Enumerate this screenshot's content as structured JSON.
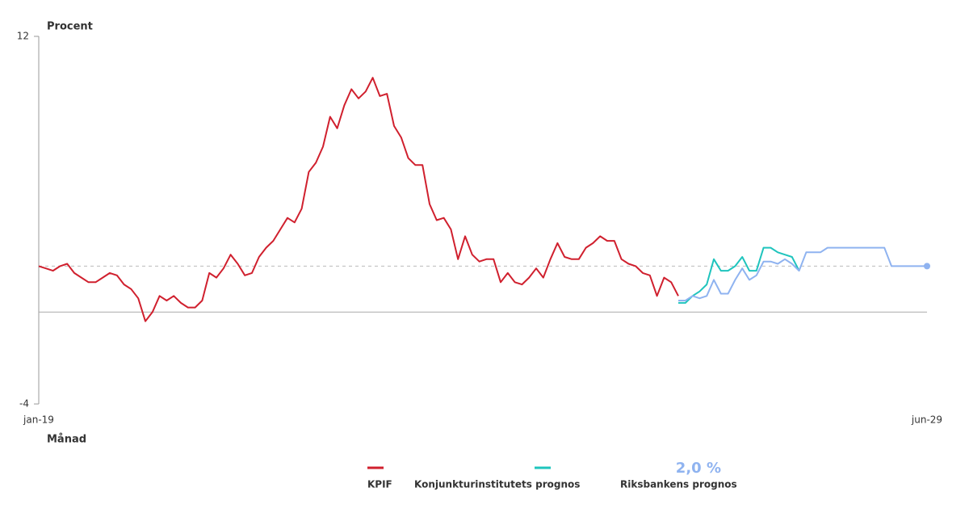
{
  "chart_data": {
    "type": "line",
    "y_label": "Procent",
    "x_label": "Månad",
    "categories": [
      "jan-19",
      null,
      null,
      null,
      null,
      null,
      null,
      null,
      null,
      null,
      null,
      null,
      null,
      null,
      null,
      null,
      null,
      null,
      null,
      null,
      null,
      null,
      null,
      null,
      null,
      null,
      null,
      null,
      null,
      null,
      null,
      null,
      null,
      null,
      null,
      null,
      null,
      null,
      null,
      null,
      null,
      null,
      null,
      null,
      null,
      null,
      null,
      null,
      null,
      null,
      null,
      null,
      null,
      null,
      null,
      null,
      null,
      null,
      null,
      null,
      null,
      null,
      null,
      null,
      null,
      null,
      null,
      null,
      null,
      null,
      null,
      null,
      null,
      null,
      null,
      null,
      null,
      null,
      null,
      null,
      null,
      null,
      null,
      null,
      null,
      null,
      null,
      null,
      null,
      null,
      null,
      null,
      null,
      null,
      null,
      null,
      null,
      null,
      null,
      null,
      null,
      null,
      null,
      null,
      null,
      null,
      null,
      null,
      null,
      null,
      null,
      null,
      null,
      null,
      null,
      null,
      null,
      null,
      null,
      null,
      null,
      null,
      null,
      null,
      null,
      "jun-29"
    ],
    "ylim": [
      -4,
      12
    ],
    "yticks": [
      -4,
      12
    ],
    "hline": 2,
    "series": [
      {
        "name": "KPIF",
        "color": "#d0202e",
        "values": [
          2.0,
          1.9,
          1.8,
          2.0,
          2.1,
          1.7,
          1.5,
          1.3,
          1.3,
          1.5,
          1.7,
          1.6,
          1.2,
          1.0,
          0.6,
          -0.4,
          0.0,
          0.7,
          0.5,
          0.7,
          0.4,
          0.2,
          0.2,
          0.5,
          1.7,
          1.5,
          1.9,
          2.5,
          2.1,
          1.6,
          1.7,
          2.4,
          2.8,
          3.1,
          3.6,
          4.1,
          3.9,
          4.5,
          6.1,
          6.5,
          7.2,
          8.5,
          8.0,
          9.0,
          9.7,
          9.3,
          9.6,
          10.2,
          9.4,
          9.5,
          8.1,
          7.6,
          6.7,
          6.4,
          6.4,
          4.7,
          4.0,
          4.1,
          3.6,
          2.3,
          3.3,
          2.5,
          2.2,
          2.3,
          2.3,
          1.3,
          1.7,
          1.3,
          1.2,
          1.5,
          1.9,
          1.5,
          2.3,
          3.0,
          2.4,
          2.3,
          2.3,
          2.8,
          3.0,
          3.3,
          3.1,
          3.1,
          2.3,
          2.1,
          2.0,
          1.7,
          1.6,
          0.7,
          1.5,
          1.3,
          0.7,
          null,
          null,
          null,
          null,
          null,
          null,
          null,
          null,
          null,
          null,
          null,
          null,
          null,
          null,
          null,
          null,
          null,
          null,
          null,
          null,
          null,
          null,
          null,
          null,
          null,
          null,
          null,
          null,
          null,
          null,
          null,
          null,
          null,
          null,
          null
        ]
      },
      {
        "name": "Konjunkturinstitutets prognos",
        "color": "#1fc4bd",
        "values": [
          null,
          null,
          null,
          null,
          null,
          null,
          null,
          null,
          null,
          null,
          null,
          null,
          null,
          null,
          null,
          null,
          null,
          null,
          null,
          null,
          null,
          null,
          null,
          null,
          null,
          null,
          null,
          null,
          null,
          null,
          null,
          null,
          null,
          null,
          null,
          null,
          null,
          null,
          null,
          null,
          null,
          null,
          null,
          null,
          null,
          null,
          null,
          null,
          null,
          null,
          null,
          null,
          null,
          null,
          null,
          null,
          null,
          null,
          null,
          null,
          null,
          null,
          null,
          null,
          null,
          null,
          null,
          null,
          null,
          null,
          null,
          null,
          null,
          null,
          null,
          null,
          null,
          null,
          null,
          null,
          null,
          null,
          null,
          null,
          null,
          null,
          null,
          null,
          null,
          null,
          0.4,
          0.4,
          0.7,
          0.9,
          1.2,
          2.3,
          1.8,
          1.8,
          2.0,
          2.4,
          1.8,
          1.8,
          2.8,
          2.8,
          2.6,
          2.5,
          2.4,
          1.8,
          null,
          null,
          null,
          null,
          null,
          null,
          null,
          null,
          null,
          null,
          null,
          null,
          null,
          null,
          null,
          null,
          null,
          null
        ]
      },
      {
        "name": "Riksbankens prognos",
        "color": "#8fb3f0",
        "values": [
          null,
          null,
          null,
          null,
          null,
          null,
          null,
          null,
          null,
          null,
          null,
          null,
          null,
          null,
          null,
          null,
          null,
          null,
          null,
          null,
          null,
          null,
          null,
          null,
          null,
          null,
          null,
          null,
          null,
          null,
          null,
          null,
          null,
          null,
          null,
          null,
          null,
          null,
          null,
          null,
          null,
          null,
          null,
          null,
          null,
          null,
          null,
          null,
          null,
          null,
          null,
          null,
          null,
          null,
          null,
          null,
          null,
          null,
          null,
          null,
          null,
          null,
          null,
          null,
          null,
          null,
          null,
          null,
          null,
          null,
          null,
          null,
          null,
          null,
          null,
          null,
          null,
          null,
          null,
          null,
          null,
          null,
          null,
          null,
          null,
          null,
          null,
          null,
          null,
          null,
          0.5,
          0.5,
          0.7,
          0.6,
          0.7,
          1.4,
          0.8,
          0.8,
          1.4,
          1.9,
          1.4,
          1.6,
          2.2,
          2.2,
          2.1,
          2.3,
          2.1,
          1.8,
          2.6,
          2.6,
          2.6,
          2.8,
          2.8,
          2.8,
          2.8,
          2.8,
          2.8,
          2.8,
          2.8,
          2.8,
          2.0,
          2.0,
          2.0,
          2.0,
          2.0,
          2.0
        ],
        "value_labels": [
          null,
          null,
          null,
          null,
          null,
          null,
          null,
          null,
          null,
          null,
          null,
          null,
          null,
          null,
          null,
          null,
          null,
          null,
          null,
          null,
          null,
          null,
          null,
          null,
          null,
          null,
          null,
          null,
          null,
          null,
          null,
          null,
          null,
          null,
          null,
          null,
          null,
          null,
          null,
          null,
          null,
          null,
          null,
          null,
          null,
          null,
          null,
          null,
          null,
          null,
          null,
          null,
          null,
          null,
          null,
          null,
          null,
          null,
          null,
          null,
          null,
          null,
          null,
          null,
          null,
          null,
          null,
          null,
          null,
          null,
          null,
          null,
          null,
          null,
          null,
          null,
          null,
          null,
          null,
          null,
          null,
          null,
          null,
          null,
          null,
          null,
          null,
          null,
          null,
          null,
          null,
          null,
          null,
          null,
          null,
          null,
          null,
          null,
          null,
          null,
          null,
          null,
          null,
          null,
          null,
          null,
          null,
          null,
          null,
          null,
          null,
          null,
          null,
          null,
          null,
          null,
          null,
          null,
          null,
          null,
          null,
          null,
          null,
          null,
          null,
          "2,0 %"
        ]
      }
    ]
  }
}
